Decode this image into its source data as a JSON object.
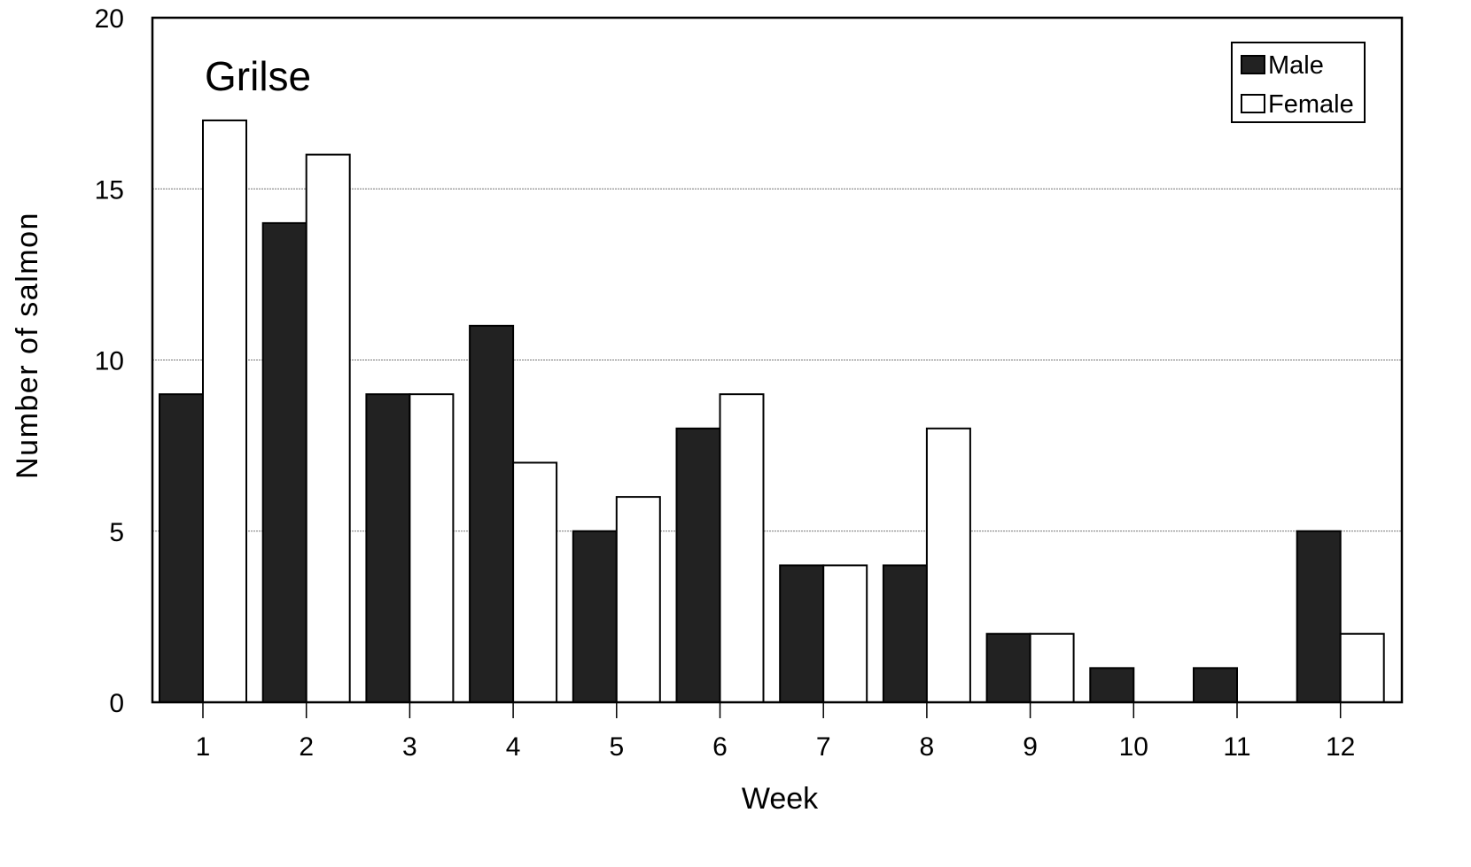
{
  "chart_data": {
    "type": "bar",
    "title": "Grilse",
    "xlabel": "Week",
    "ylabel": "Number of salmon",
    "categories": [
      "1",
      "2",
      "3",
      "4",
      "5",
      "6",
      "7",
      "8",
      "9",
      "10",
      "11",
      "12"
    ],
    "series": [
      {
        "name": "Male",
        "color": "#222222",
        "values": [
          9,
          14,
          9,
          11,
          5,
          8,
          4,
          4,
          2,
          1,
          1,
          5
        ]
      },
      {
        "name": "Female",
        "color": "#ffffff",
        "values": [
          17,
          16,
          9,
          7,
          6,
          9,
          4,
          8,
          2,
          0,
          0,
          2
        ]
      }
    ],
    "ylim": [
      0,
      20
    ],
    "yticks": [
      0,
      5,
      10,
      15,
      20
    ],
    "grid": true,
    "legend": "top-right"
  }
}
